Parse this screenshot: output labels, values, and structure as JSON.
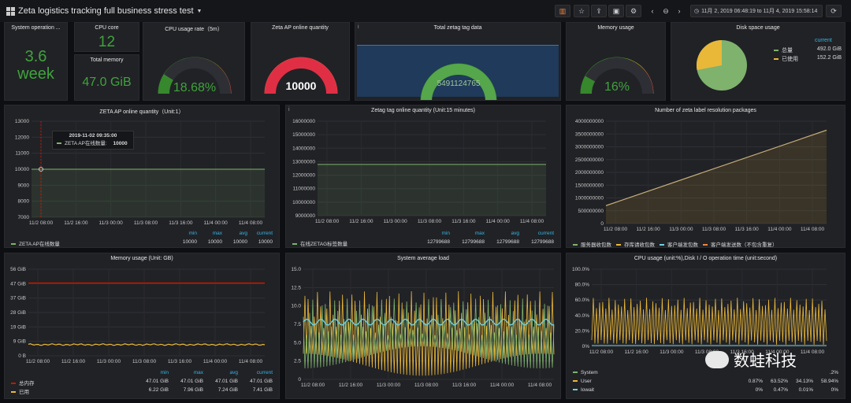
{
  "topbar": {
    "title": "Zeta logistics tracking full business stress test",
    "time_range": "11月 2, 2019 06:48:19 to 11月 4, 2019 15:58:14"
  },
  "stats": {
    "uptime": {
      "title": "System operation ...",
      "value": "3.6",
      "unit": "week"
    },
    "cpu_core": {
      "title": "CPU core",
      "value": "12"
    },
    "total_memory": {
      "title": "Total memory",
      "value": "47.0 GiB"
    },
    "cpu_usage": {
      "title": "CPU usage rate（5m）",
      "value": "18.68%"
    },
    "ap_online": {
      "title": "Zeta AP online quantity",
      "value": "10000"
    },
    "zetag_total": {
      "title": "Total zetag tag data",
      "value": "5491124765"
    },
    "memory_usage": {
      "title": "Memory usage",
      "value": "16%"
    },
    "disk": {
      "title": "Disk space usage",
      "legend_header": "current",
      "items": [
        {
          "label": "总量",
          "value": "492.0 GiB",
          "color": "#7eb26d"
        },
        {
          "label": "已使用",
          "value": "152.2 GiB",
          "color": "#eab839"
        }
      ]
    }
  },
  "charts": {
    "ap": {
      "title": "ZETA AP online quantity（Unit:1）",
      "yticks": [
        "13000",
        "12000",
        "11000",
        "10000",
        "9000",
        "8000",
        "7000"
      ],
      "xticks": [
        "11/2 08:00",
        "11/2 16:00",
        "11/3 00:00",
        "11/3 08:00",
        "11/3 16:00",
        "11/4 00:00",
        "11/4 08:00"
      ],
      "tooltip": {
        "time": "2019-11-02 09:35:00",
        "label": "ZETA AP在线数量:",
        "value": "10000"
      },
      "legend_headers": [
        "min",
        "max",
        "avg",
        "current"
      ],
      "legend": [
        {
          "name": "ZETA AP在线数量",
          "values": [
            "10000",
            "10000",
            "10000",
            "10000"
          ],
          "color": "#7eb26d"
        }
      ]
    },
    "zetag": {
      "title": "Zetag tag online quantity (Unit:15 minutes)",
      "yticks": [
        "16000000",
        "15000000",
        "14000000",
        "13000000",
        "12000000",
        "11000000",
        "10000000",
        "9000000"
      ],
      "xticks": [
        "11/2 08:00",
        "11/2 16:00",
        "11/3 00:00",
        "11/3 08:00",
        "11/3 16:00",
        "11/4 00:00",
        "11/4 08:00"
      ],
      "legend_headers": [
        "min",
        "max",
        "avg",
        "current"
      ],
      "legend": [
        {
          "name": "在线ZETAG标签数量",
          "values": [
            "12799688",
            "12799688",
            "12799688",
            "12799688"
          ],
          "color": "#7eb26d"
        }
      ]
    },
    "packages": {
      "title": "Number of zeta label resolution packages",
      "yticks": [
        "4000000000",
        "3500000000",
        "3000000000",
        "2500000000",
        "2000000000",
        "1500000000",
        "1000000000",
        "500000000",
        "0"
      ],
      "xticks": [
        "11/2 08:00",
        "11/2 16:00",
        "11/3 00:00",
        "11/3 08:00",
        "11/3 16:00",
        "11/4 00:00",
        "11/4 08:00"
      ],
      "legend": [
        {
          "name": "服务器收包数",
          "color": "#7eb26d"
        },
        {
          "name": "存库请收包数",
          "color": "#eab839"
        },
        {
          "name": "客户端发包数",
          "color": "#6ed0e0"
        },
        {
          "name": "客户端发送数（不包含重复）",
          "color": "#ef843c"
        }
      ]
    },
    "mem": {
      "title": "Memory usage (Unit: GB)",
      "yticks": [
        "56 GiB",
        "47 GiB",
        "37 GiB",
        "28 GiB",
        "19 GiB",
        "9 GiB",
        "0 B"
      ],
      "xticks": [
        "11/2 08:00",
        "11/2 16:00",
        "11/3 00:00",
        "11/3 08:00",
        "11/3 16:00",
        "11/4 00:00",
        "11/4 08:00"
      ],
      "legend_headers": [
        "min",
        "max",
        "avg",
        "current"
      ],
      "legend": [
        {
          "name": "总内存",
          "values": [
            "47.01 GiB",
            "47.01 GiB",
            "47.01 GiB",
            "47.01 GiB"
          ],
          "color": "#bf1b00"
        },
        {
          "name": "已用",
          "values": [
            "6.22 GiB",
            "7.96 GiB",
            "7.24 GiB",
            "7.41 GiB"
          ],
          "color": "#eab839"
        }
      ]
    },
    "load": {
      "title": "System average load",
      "yticks": [
        "15.0",
        "12.5",
        "10.0",
        "7.5",
        "5.0",
        "2.5",
        "0"
      ],
      "xticks": [
        "11/2 08:00",
        "11/2 16:00",
        "11/3 00:00",
        "11/3 08:00",
        "11/3 16:00",
        "11/4 00:00",
        "11/4 08:00"
      ]
    },
    "cpuio": {
      "title": "CPU usage (unit:%),Disk I / O operation time (unit:second)",
      "yticks": [
        "100.0%",
        "80.0%",
        "60.0%",
        "40.0%",
        "20.0%",
        "0%"
      ],
      "xticks": [
        "11/2 08:00",
        "11/2 16:00",
        "11/3 00:00",
        "11/3 08:00",
        "11/3 16:00",
        "11/4 00:00",
        "11/4 08:00"
      ],
      "legend": [
        {
          "name": "System",
          "values": [
            "",
            "",
            "",
            ".2%"
          ],
          "color": "#7eb26d"
        },
        {
          "name": "User",
          "values": [
            "0.87%",
            "63.52%",
            "34.13%",
            "58.94%"
          ],
          "color": "#eab839"
        },
        {
          "name": "Iowait",
          "values": [
            "0%",
            "0.47%",
            "0.01%",
            "0%"
          ],
          "color": "#6ed0e0"
        }
      ]
    }
  },
  "watermark": {
    "text": "数蛙科技"
  }
}
